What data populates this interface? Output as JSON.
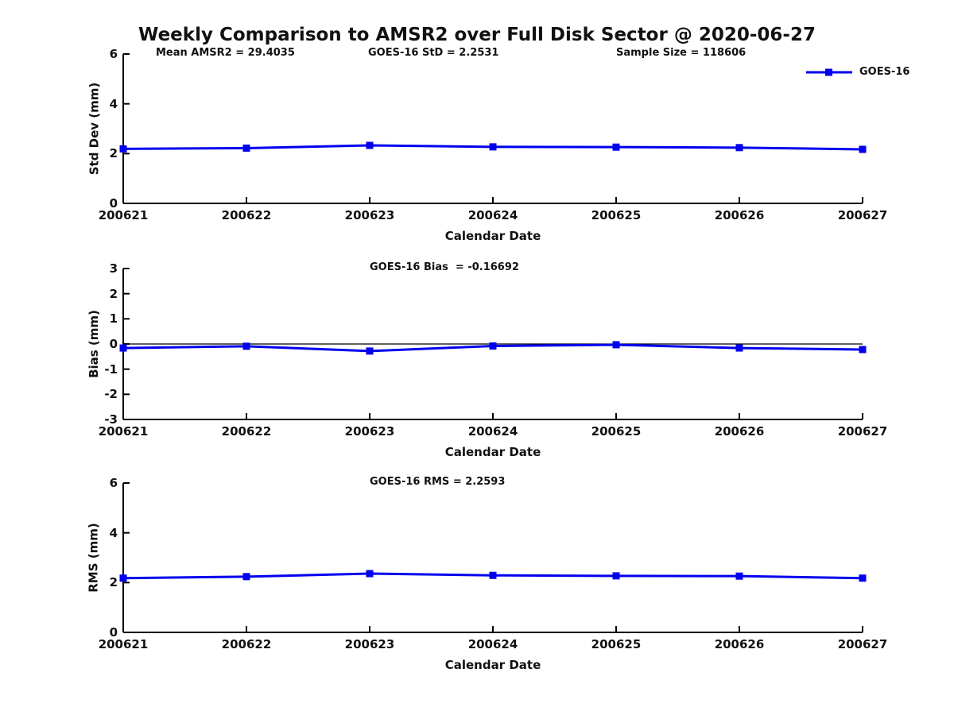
{
  "page": {
    "title": "Weekly Comparison to AMSR2 over Full Disk Sector @ 2020-06-27"
  },
  "colors": {
    "series": "#0000EE",
    "axis": "#000000",
    "background": "#FFFFFF",
    "text": "#111111"
  },
  "legend": {
    "label": "GOES-16"
  },
  "chart_data": [
    {
      "type": "line",
      "title": "",
      "annotations": [
        "Mean AMSR2 = 29.4035",
        "GOES-16 StD = 2.2531",
        "Sample Size = 118606"
      ],
      "x": [
        "200621",
        "200622",
        "200623",
        "200624",
        "200625",
        "200626",
        "200627"
      ],
      "series": [
        {
          "name": "GOES-16",
          "values": [
            2.19,
            2.22,
            2.33,
            2.27,
            2.26,
            2.24,
            2.17
          ]
        }
      ],
      "xlabel": "Calendar Date",
      "ylabel": "Std Dev (mm)",
      "ylim": [
        0,
        6
      ],
      "yticks": [
        0,
        2,
        4,
        6
      ],
      "zero_line": false,
      "grid": false,
      "legend_position": "top-right-outside"
    },
    {
      "type": "line",
      "title": "GOES-16 Bias  = -0.16692",
      "annotations": [],
      "x": [
        "200621",
        "200622",
        "200623",
        "200624",
        "200625",
        "200626",
        "200627"
      ],
      "series": [
        {
          "name": "GOES-16",
          "values": [
            -0.16,
            -0.09,
            -0.28,
            -0.08,
            -0.03,
            -0.16,
            -0.22
          ]
        }
      ],
      "xlabel": "Calendar Date",
      "ylabel": "Bias (mm)",
      "ylim": [
        -3,
        3
      ],
      "yticks": [
        -3,
        -2,
        -1,
        0,
        1,
        2,
        3
      ],
      "zero_line": true,
      "grid": false,
      "legend_position": "none"
    },
    {
      "type": "line",
      "title": "GOES-16 RMS = 2.2593",
      "annotations": [],
      "x": [
        "200621",
        "200622",
        "200623",
        "200624",
        "200625",
        "200626",
        "200627"
      ],
      "series": [
        {
          "name": "GOES-16",
          "values": [
            2.18,
            2.24,
            2.36,
            2.29,
            2.27,
            2.26,
            2.18
          ]
        }
      ],
      "xlabel": "Calendar Date",
      "ylabel": "RMS (mm)",
      "ylim": [
        0,
        6
      ],
      "yticks": [
        0,
        2,
        4,
        6
      ],
      "zero_line": false,
      "grid": false,
      "legend_position": "none"
    }
  ]
}
